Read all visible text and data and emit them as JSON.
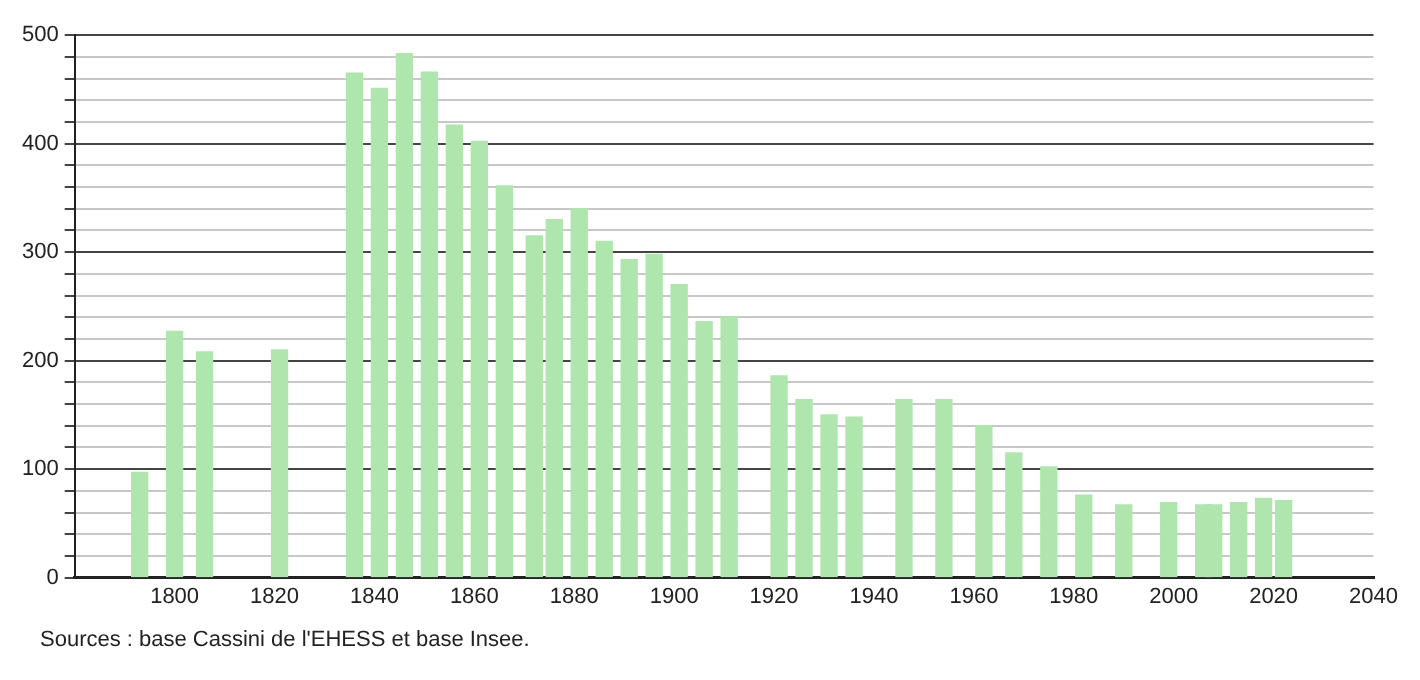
{
  "chart_data": {
    "type": "bar",
    "x": [
      1793,
      1800,
      1806,
      1821,
      1836,
      1841,
      1846,
      1851,
      1856,
      1861,
      1866,
      1872,
      1876,
      1881,
      1886,
      1891,
      1896,
      1901,
      1906,
      1911,
      1921,
      1926,
      1931,
      1936,
      1946,
      1954,
      1962,
      1968,
      1975,
      1982,
      1990,
      1999,
      2006,
      2008,
      2013,
      2018,
      2022
    ],
    "values": [
      97,
      227,
      208,
      210,
      465,
      451,
      483,
      466,
      417,
      402,
      361,
      315,
      330,
      340,
      310,
      293,
      298,
      270,
      236,
      240,
      186,
      164,
      150,
      148,
      164,
      164,
      140,
      115,
      102,
      76,
      67,
      69,
      67,
      67,
      69,
      73,
      71
    ],
    "color": "#aee6ae",
    "xlim": [
      1780,
      2040
    ],
    "xticks": [
      1800,
      1820,
      1840,
      1860,
      1880,
      1900,
      1920,
      1940,
      1960,
      1980,
      2000,
      2020,
      2040
    ],
    "ylim": [
      0,
      500
    ],
    "yticks": [
      0,
      {
        "value": 20,
        "label": null
      },
      {
        "value": 40,
        "label": null
      },
      {
        "value": 60,
        "label": null
      },
      {
        "value": 80,
        "label": null
      },
      100,
      {
        "value": 120,
        "label": null
      },
      {
        "value": 140,
        "label": null
      },
      {
        "value": 160,
        "label": null
      },
      {
        "value": 180,
        "label": null
      },
      200,
      {
        "value": 220,
        "label": null
      },
      {
        "value": 240,
        "label": null
      },
      {
        "value": 260,
        "label": null
      },
      {
        "value": 280,
        "label": null
      },
      300,
      {
        "value": 320,
        "label": null
      },
      {
        "value": 340,
        "label": null
      },
      {
        "value": 360,
        "label": null
      },
      {
        "value": 380,
        "label": null
      },
      400,
      {
        "value": 420,
        "label": null
      },
      {
        "value": 440,
        "label": null
      },
      {
        "value": 460,
        "label": null
      },
      {
        "value": 480,
        "label": null
      },
      500
    ],
    "grid": "y",
    "legend": false,
    "annotations": [
      "Sources : base Cassini de l'EHESS et base Insee."
    ]
  }
}
